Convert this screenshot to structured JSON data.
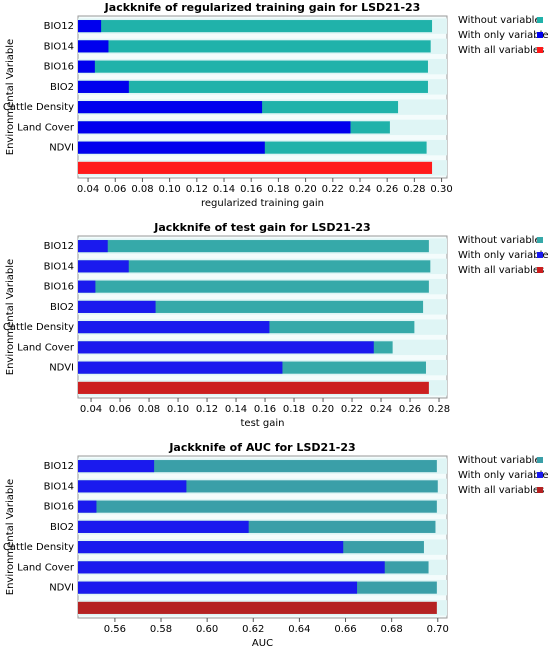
{
  "chart_data": [
    {
      "type": "bar",
      "orientation": "horizontal",
      "title": "Jackknife of regularized training gain for LSD21-23",
      "xlabel": "regularized training gain",
      "ylabel": "Environmental Variable",
      "categories": [
        "BIO12",
        "BIO14",
        "BIO16",
        "BIO2",
        "Cattle Density",
        "Land Cover",
        "NDVI",
        null
      ],
      "series": [
        {
          "name": "Without variable",
          "color": "#20b2aa",
          "values": [
            0.293,
            0.292,
            0.29,
            0.29,
            0.268,
            0.262,
            0.289,
            null
          ]
        },
        {
          "name": "With only variable",
          "color": "#0000ee",
          "values": [
            0.0496,
            0.055,
            0.045,
            0.07,
            0.168,
            0.233,
            0.17,
            null
          ]
        },
        {
          "name": "With all variables",
          "color": "#ff1a1a",
          "values": [
            null,
            null,
            null,
            null,
            null,
            null,
            null,
            0.293
          ]
        }
      ],
      "xlim": [
        0.0326,
        0.304
      ],
      "xticks": [
        0.04,
        0.06,
        0.08,
        {
          "value": 0.1,
          "label": "0.10"
        },
        0.12,
        0.14,
        0.16,
        0.18,
        {
          "value": 0.2,
          "label": "0.20"
        },
        0.22,
        0.24,
        0.26,
        0.28,
        {
          "value": 0.3,
          "label": "0.30"
        }
      ]
    },
    {
      "type": "bar",
      "orientation": "horizontal",
      "title": "Jackknife of test gain for LSD21-23",
      "xlabel": "test gain",
      "ylabel": "Environmental Variable",
      "categories": [
        "BIO12",
        "BIO14",
        "BIO16",
        "BIO2",
        "Cattle Density",
        "Land Cover",
        "NDVI",
        null
      ],
      "series": [
        {
          "name": "Without variable",
          "color": "#36a9a9",
          "values": [
            0.273,
            0.274,
            0.273,
            0.269,
            0.263,
            0.248,
            0.271,
            null
          ]
        },
        {
          "name": "With only variable",
          "color": "#1a1aee",
          "values": [
            0.0515,
            0.066,
            0.043,
            0.0845,
            0.163,
            0.235,
            0.172,
            null
          ]
        },
        {
          "name": "With all variables",
          "color": "#cc1f1f",
          "values": [
            null,
            null,
            null,
            null,
            null,
            null,
            null,
            0.273
          ]
        }
      ],
      "xlim": [
        0.031,
        0.2855
      ],
      "xticks": [
        0.04,
        0.06,
        0.08,
        {
          "value": 0.1,
          "label": "0.10"
        },
        0.12,
        0.14,
        0.16,
        0.18,
        {
          "value": 0.2,
          "label": "0.20"
        },
        0.22,
        0.24,
        0.26,
        0.28
      ]
    },
    {
      "type": "bar",
      "orientation": "horizontal",
      "title": "Jackknife of AUC for LSD21-23",
      "xlabel": "AUC",
      "ylabel": "Environmental Variable",
      "categories": [
        "BIO12",
        "BIO14",
        "BIO16",
        "BIO2",
        "Cattle Density",
        "Land Cover",
        "NDVI",
        null
      ],
      "series": [
        {
          "name": "Without variable",
          "color": "#3a9fa8",
          "values": [
            0.6996,
            0.7,
            0.6996,
            0.699,
            0.694,
            0.696,
            0.6996,
            null
          ]
        },
        {
          "name": "With only variable",
          "color": "#1a1aee",
          "values": [
            0.577,
            0.591,
            0.552,
            0.618,
            0.659,
            0.677,
            0.665,
            null
          ]
        },
        {
          "name": "With all variables",
          "color": "#b52222",
          "values": [
            null,
            null,
            null,
            null,
            null,
            null,
            null,
            0.6996
          ]
        }
      ],
      "xlim": [
        0.544,
        0.704
      ],
      "xticks": [
        0.56,
        0.58,
        {
          "value": 0.6,
          "label": "0.60"
        },
        0.62,
        0.64,
        0.66,
        0.68,
        {
          "value": 0.7,
          "label": "0.70"
        }
      ]
    }
  ]
}
